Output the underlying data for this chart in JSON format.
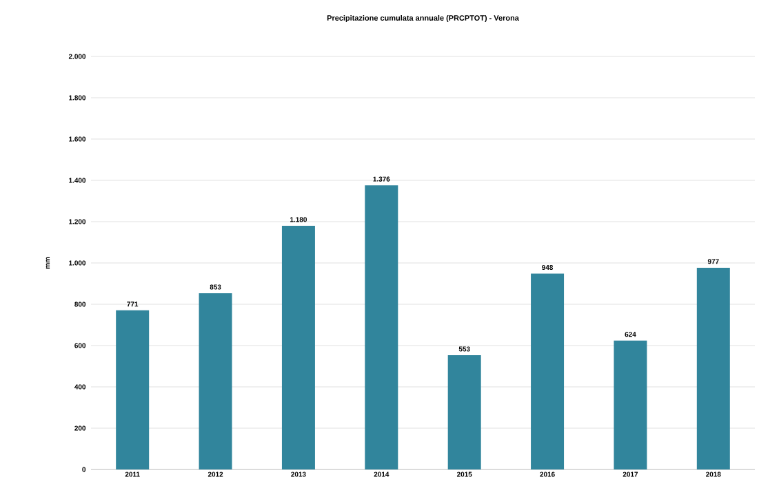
{
  "chart_data": {
    "type": "bar",
    "title": "Precipitazione cumulata annuale (PRCPTOT) - Verona",
    "ylabel": "mm",
    "categories": [
      "2011",
      "2012",
      "2013",
      "2014",
      "2015",
      "2016",
      "2017",
      "2018"
    ],
    "values": [
      771,
      853,
      1180,
      1376,
      553,
      948,
      624,
      977
    ],
    "value_labels": [
      "771",
      "853",
      "1.180",
      "1.376",
      "553",
      "948",
      "624",
      "977"
    ],
    "color": "#31859c",
    "ylim": [
      0,
      2000
    ],
    "yticks": [
      0,
      200,
      400,
      600,
      800,
      {
        "value": 1000,
        "label": "1.000"
      },
      {
        "value": 1200,
        "label": "1.200"
      },
      {
        "value": 1400,
        "label": "1.400"
      },
      {
        "value": 1600,
        "label": "1.600"
      },
      {
        "value": 1800,
        "label": "1.800"
      },
      {
        "value": 2000,
        "label": "2.000"
      }
    ],
    "grid": "y"
  }
}
